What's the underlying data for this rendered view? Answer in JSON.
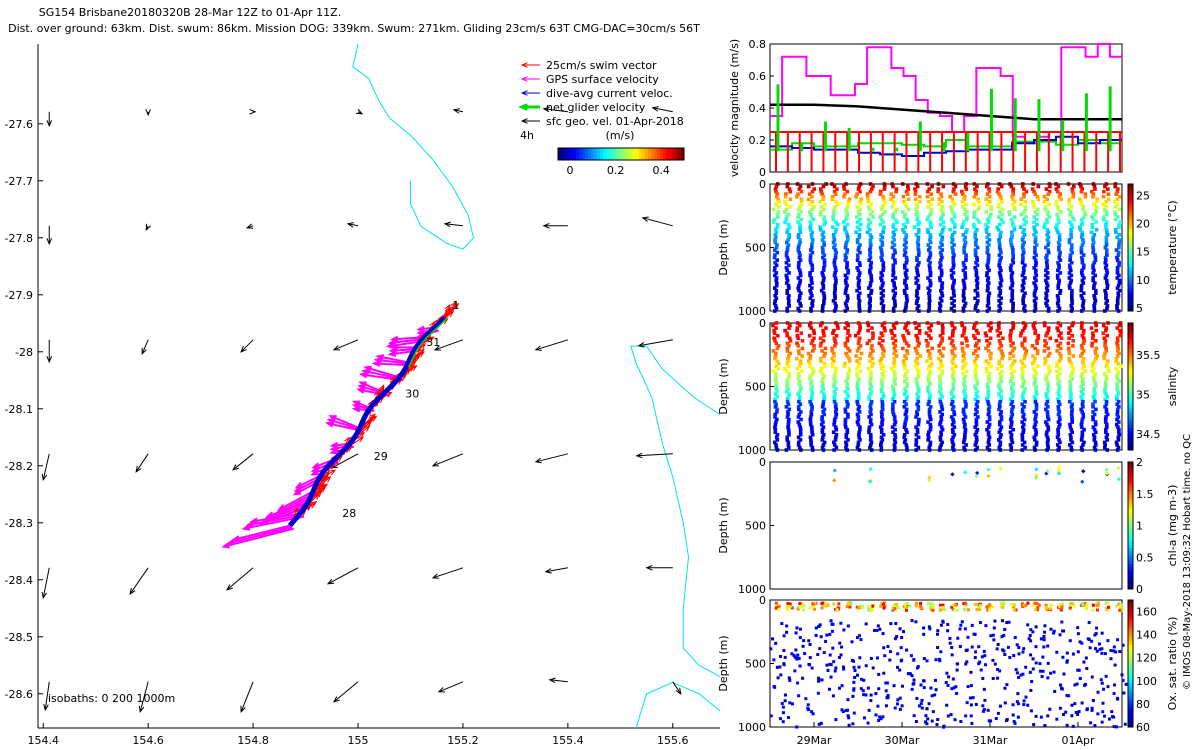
{
  "titles": {
    "line1": "SG154 Brisbane20180320B 28-Mar 12Z to 01-Apr 11Z.",
    "line2": "Dist. over ground: 63km. Dist. swum: 86km. Mission DOG: 339km. Swum: 271km. Gliding 23cm/s 63T CMG-DAC=30cm/s 56T"
  },
  "colors": {
    "swim": "#ff0000",
    "gps": "#ff00ff",
    "dac": "#0000cc",
    "net": "#00dd00",
    "geo": "#000000",
    "coast": "#00e5e5"
  },
  "map": {
    "xticks": [
      154.4,
      154.6,
      154.8,
      155.0,
      155.2,
      155.4,
      155.6
    ],
    "xtick_labels": [
      "154.4",
      "154.6",
      "154.8",
      "155",
      "155.2",
      "155.4",
      "155.6"
    ],
    "yticks": [
      -27.6,
      -27.7,
      -27.8,
      -27.9,
      -28.0,
      -28.1,
      -28.2,
      -28.3,
      -28.4,
      -28.5,
      -28.6
    ],
    "ytick_labels": [
      "-27.6",
      "-27.7",
      "-27.8",
      "-27.9",
      "-28",
      "-28.1",
      "-28.2",
      "-28.3",
      "-28.4",
      "-28.5",
      "-28.6"
    ],
    "xlim": [
      154.39,
      155.69
    ],
    "ylim": [
      -28.66,
      -27.46
    ],
    "legend": [
      {
        "label": "25cm/s swim vector",
        "color": "#ff0000"
      },
      {
        "label": "GPS surface velocity",
        "color": "#ff00ff"
      },
      {
        "label": "dive-avg current veloc.",
        "color": "#0000cc"
      },
      {
        "label": "net glider velocity",
        "color": "#00dd00"
      },
      {
        "label": "sfc geo. vel. 01-Apr-2018",
        "color": "#000000"
      }
    ],
    "interval_label": "4h",
    "colorbar_title": "(m/s)",
    "colorbar_ticks": [
      "0",
      "0.2",
      "0.4"
    ],
    "isobath_label": "isobaths: 0   200  1000m",
    "day_labels": [
      {
        "text": "1",
        "lon": 155.18,
        "lat": -27.925
      },
      {
        "text": "31",
        "lon": 155.13,
        "lat": -27.99
      },
      {
        "text": "30",
        "lon": 155.09,
        "lat": -28.08
      },
      {
        "text": "29",
        "lon": 155.03,
        "lat": -28.19
      },
      {
        "text": "28",
        "lon": 154.97,
        "lat": -28.29
      }
    ]
  },
  "chart_data": [
    {
      "type": "line",
      "title": "",
      "xlabel": "",
      "ylabel": "velocity magnitude (m/s)",
      "ylim": [
        0,
        0.8
      ],
      "yticks": [
        "0",
        "0.2",
        "0.4",
        "0.6",
        "0.8"
      ],
      "x_range_days": [
        28.5,
        32.5
      ],
      "series": [
        {
          "color": "#ff00ff",
          "values": [
            0.35,
            0.72,
            0.72,
            0.6,
            0.6,
            0.48,
            0.48,
            0.55,
            0.78,
            0.78,
            0.65,
            0.6,
            0.45,
            0.37,
            0.35,
            0.25,
            0.35,
            0.65,
            0.65,
            0.6,
            0.22,
            0.18,
            0.22,
            0.25,
            0.78,
            0.78,
            0.72,
            0.8,
            0.72
          ]
        },
        {
          "color": "#000000",
          "values": [
            0.42,
            0.42,
            0.41,
            0.39,
            0.37,
            0.35,
            0.33,
            0.33
          ]
        },
        {
          "color": "#00dd00",
          "values": [
            0.14,
            0.18,
            0.16,
            0.16,
            0.18,
            0.18,
            0.17,
            0.16,
            0.2,
            0.16,
            0.16,
            0.19,
            0.19,
            0.17,
            0.2,
            0.18
          ]
        },
        {
          "color": "#0000cc",
          "values": [
            0.16,
            0.15,
            0.14,
            0.14,
            0.12,
            0.11,
            0.1,
            0.12,
            0.13,
            0.14,
            0.14,
            0.18,
            0.2,
            0.22,
            0.18,
            0.2
          ]
        },
        {
          "color": "#ff0000",
          "values": [
            0.25,
            0.25,
            0.25,
            0.25,
            0.25,
            0.25,
            0.25,
            0.25
          ]
        }
      ]
    },
    {
      "type": "scatter",
      "ylabel": "Depth (m)",
      "ylim": [
        1000,
        0
      ],
      "yticks": [
        "0",
        "500",
        "1000"
      ],
      "colorbar_label": "temperature (°C)",
      "colorbar_range": [
        4.5,
        27
      ],
      "colorbar_ticks": [
        "5",
        "10",
        "15",
        "20",
        "25"
      ],
      "dives": 30,
      "max_depth": 1000
    },
    {
      "type": "scatter",
      "ylabel": "Depth (m)",
      "ylim": [
        1000,
        0
      ],
      "yticks": [
        "0",
        "500",
        "1000"
      ],
      "colorbar_label": "salinity",
      "colorbar_range": [
        34.3,
        35.9
      ],
      "colorbar_ticks": [
        "34.5",
        "35",
        "35.5"
      ],
      "dives": 30,
      "max_depth": 1000
    },
    {
      "type": "scatter",
      "ylabel": "Depth (m)",
      "ylim": [
        1000,
        0
      ],
      "yticks": [
        "0",
        "500",
        "1000"
      ],
      "colorbar_label": "chl-a (mg m-3)",
      "colorbar_range": [
        0,
        2
      ],
      "colorbar_ticks": [
        "0",
        "0.5",
        "1",
        "1.5",
        "2"
      ],
      "dives": 30,
      "max_depth": 150
    },
    {
      "type": "scatter",
      "ylabel": "Depth (m)",
      "ylim": [
        1000,
        0
      ],
      "yticks": [
        "0",
        "500",
        "1000"
      ],
      "colorbar_label": "Ox. sat. ratio (%)",
      "colorbar_range": [
        60,
        170
      ],
      "colorbar_ticks": [
        "60",
        "80",
        "100",
        "120",
        "140",
        "160"
      ],
      "dives": 30,
      "max_depth": 1000
    }
  ],
  "time_axis": {
    "labels": [
      "29Mar",
      "30Mar",
      "31Mar",
      "01Apr"
    ]
  },
  "side_stamp": "© IMOS 08-May-2018 13:09:32 Hobart time. no QC"
}
